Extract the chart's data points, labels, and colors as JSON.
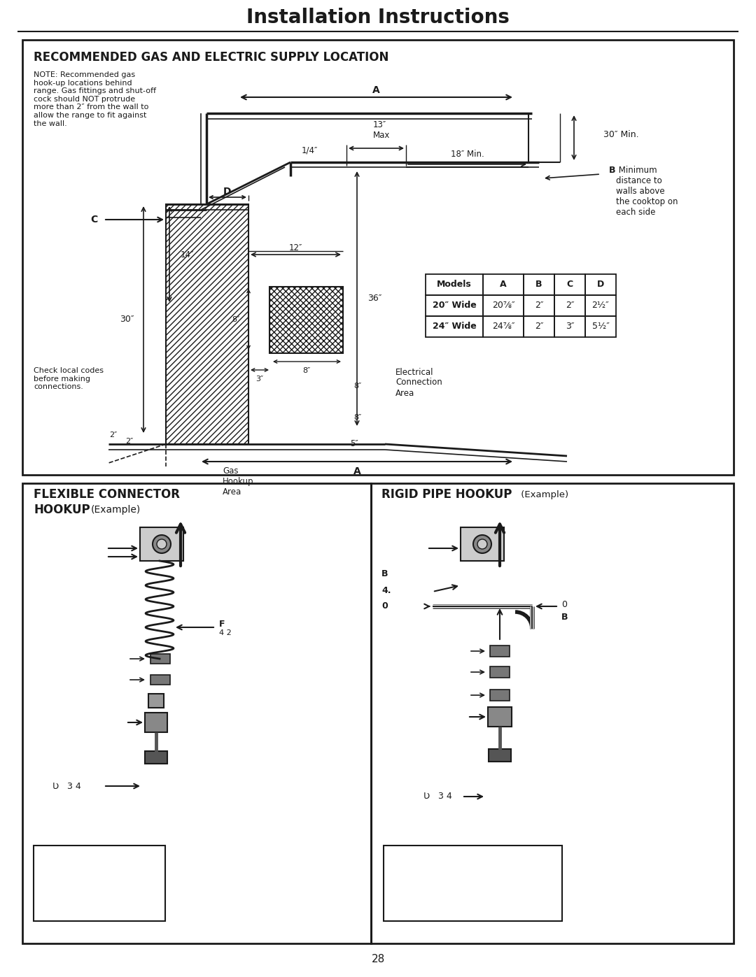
{
  "title": "Installation Instructions",
  "page_number": "28",
  "section1_title": "RECOMMENDED GAS AND ELECTRIC SUPPLY LOCATION",
  "note_text": "NOTE: Recommended gas\nhook-up locations behind\nrange. Gas fittings and shut-off\ncock should NOT protrude\nmore than 2″ from the wall to\nallow the range to fit against\nthe wall.",
  "check_local_text": "Check local codes\nbefore making\nconnections.",
  "b_note_text": " Minimum\ndistance to\nwalls above\nthe cooktop on\neach side",
  "elec_text": "Electrical\nConnection\nArea",
  "gas_hookup_text": "Gas\nHookup\nArea",
  "table_headers": [
    "Models",
    "A",
    "B",
    "C",
    "D"
  ],
  "table_row1": [
    "20″ Wide",
    "20⅞″",
    "2″",
    "2″",
    "2½″"
  ],
  "table_row2": [
    "24″ Wide",
    "24⅞″",
    "2″",
    "3″",
    "5½″"
  ],
  "section2_title1": "FLEXIBLE CONNECTOR",
  "section2_title2": "HOOKUP",
  "section2_example": "(Example)",
  "section3_title_bold": "RIGID PIPE HOOKUP",
  "section3_title_normal": " (Example)",
  "label_F": "F",
  "label_F2": "4 2",
  "label_G1": "Ʋ   3 4",
  "label_G2": "Ʋ   3 4",
  "bg_color": "#ffffff",
  "line_color": "#1a1a1a",
  "text_color": "#1a1a1a"
}
